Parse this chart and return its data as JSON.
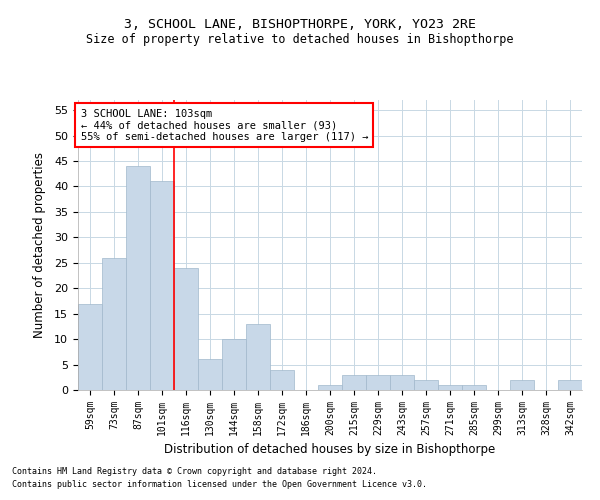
{
  "title1": "3, SCHOOL LANE, BISHOPTHORPE, YORK, YO23 2RE",
  "title2": "Size of property relative to detached houses in Bishopthorpe",
  "xlabel": "Distribution of detached houses by size in Bishopthorpe",
  "ylabel": "Number of detached properties",
  "categories": [
    "59sqm",
    "73sqm",
    "87sqm",
    "101sqm",
    "116sqm",
    "130sqm",
    "144sqm",
    "158sqm",
    "172sqm",
    "186sqm",
    "200sqm",
    "215sqm",
    "229sqm",
    "243sqm",
    "257sqm",
    "271sqm",
    "285sqm",
    "299sqm",
    "313sqm",
    "328sqm",
    "342sqm"
  ],
  "values": [
    17,
    26,
    44,
    41,
    24,
    6,
    10,
    13,
    4,
    0,
    1,
    3,
    3,
    3,
    2,
    1,
    1,
    0,
    2,
    0,
    2
  ],
  "bar_color": "#c8d8e8",
  "bar_edge_color": "#a0b8cc",
  "red_line_index": 3.5,
  "ylim": [
    0,
    57
  ],
  "yticks": [
    0,
    5,
    10,
    15,
    20,
    25,
    30,
    35,
    40,
    45,
    50,
    55
  ],
  "annotation_title": "3 SCHOOL LANE: 103sqm",
  "annotation_line1": "← 44% of detached houses are smaller (93)",
  "annotation_line2": "55% of semi-detached houses are larger (117) →",
  "annotation_box_color": "white",
  "annotation_box_edge": "red",
  "footer1": "Contains HM Land Registry data © Crown copyright and database right 2024.",
  "footer2": "Contains public sector information licensed under the Open Government Licence v3.0.",
  "bg_color": "white",
  "grid_color": "#c8d8e4"
}
